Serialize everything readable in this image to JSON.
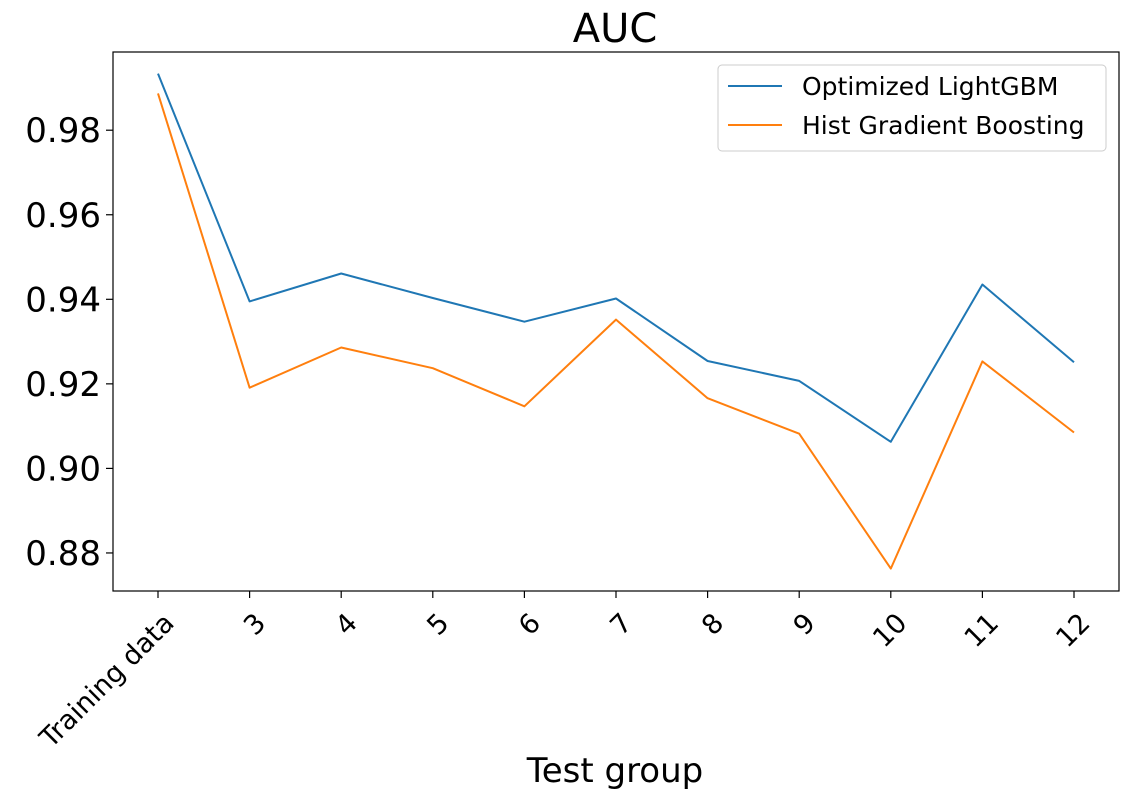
{
  "chart_data": {
    "type": "line",
    "title": "AUC",
    "xlabel": "Test group",
    "ylabel": "",
    "categories": [
      "Training data",
      "3",
      "4",
      "5",
      "6",
      "7",
      "8",
      "9",
      "10",
      "11",
      "12"
    ],
    "ylim": [
      0.871,
      0.9985
    ],
    "yticks": [
      "0.88",
      "0.90",
      "0.92",
      "0.94",
      "0.96",
      "0.98"
    ],
    "grid": false,
    "legend_position": "top-right",
    "series": [
      {
        "name": "Optimized LightGBM",
        "color": "#1f77b4",
        "values": [
          0.9934,
          0.9395,
          0.9461,
          0.9403,
          0.9347,
          0.9402,
          0.9254,
          0.9207,
          0.9063,
          0.9435,
          0.9251
        ]
      },
      {
        "name": "Hist Gradient Boosting",
        "color": "#ff7f0e",
        "values": [
          0.9887,
          0.9191,
          0.9286,
          0.9237,
          0.9147,
          0.9352,
          0.9166,
          0.9082,
          0.8763,
          0.9253,
          0.9085
        ]
      }
    ]
  }
}
